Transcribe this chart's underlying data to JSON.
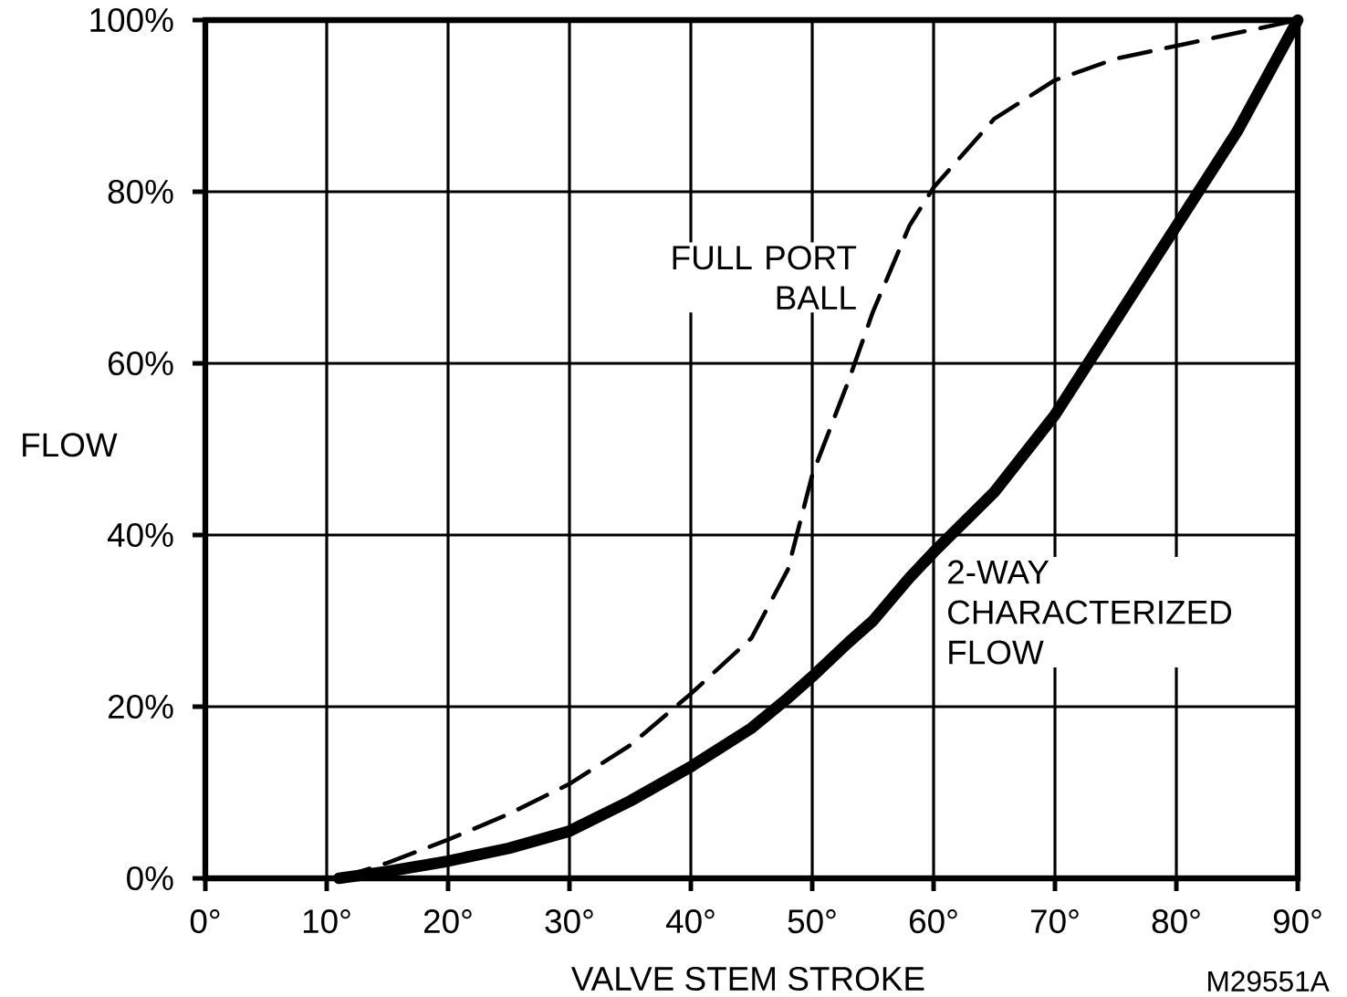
{
  "chart_data": {
    "type": "line",
    "xlabel": "VALVE STEM STROKE",
    "ylabel": "FLOW",
    "x": [
      11,
      15,
      20,
      25,
      30,
      35,
      40,
      45,
      48,
      50,
      53,
      55,
      58,
      60,
      65,
      70,
      75,
      80,
      85,
      90
    ],
    "series": [
      {
        "name": "FULL PORT BALL",
        "color": "#000000",
        "line_style": "dashed",
        "values": [
          0,
          1.8,
          4.5,
          7.5,
          11,
          15.5,
          21.5,
          28,
          36,
          47,
          58,
          66,
          76,
          80.5,
          88.5,
          93,
          95.5,
          97,
          98.5,
          100
        ]
      },
      {
        "name": "2-WAY CHARACTERIZED FLOW",
        "color": "#000000",
        "line_style": "solid",
        "values": [
          0,
          0.8,
          2,
          3.5,
          5.5,
          9,
          13,
          17.5,
          21,
          23.5,
          27.5,
          30,
          35,
          38,
          45,
          54,
          65,
          76,
          87,
          100
        ]
      }
    ],
    "xlim": [
      0,
      90
    ],
    "ylim": [
      0,
      100
    ],
    "xticks": [
      {
        "value": 0,
        "label": "0°"
      },
      {
        "value": 10,
        "label": "10°"
      },
      {
        "value": 20,
        "label": "20°"
      },
      {
        "value": 30,
        "label": "30°"
      },
      {
        "value": 40,
        "label": "40°"
      },
      {
        "value": 50,
        "label": "50°"
      },
      {
        "value": 60,
        "label": "60°"
      },
      {
        "value": 70,
        "label": "70°"
      },
      {
        "value": 80,
        "label": "80°"
      },
      {
        "value": 90,
        "label": "90°"
      }
    ],
    "yticks": [
      {
        "value": 0,
        "label": "0%"
      },
      {
        "value": 20,
        "label": "20%"
      },
      {
        "value": 40,
        "label": "40%"
      },
      {
        "value": 60,
        "label": "60%"
      },
      {
        "value": 80,
        "label": "80%"
      },
      {
        "value": 100,
        "label": "100%"
      }
    ],
    "grid": true,
    "annotations": [
      "M29551A"
    ]
  }
}
